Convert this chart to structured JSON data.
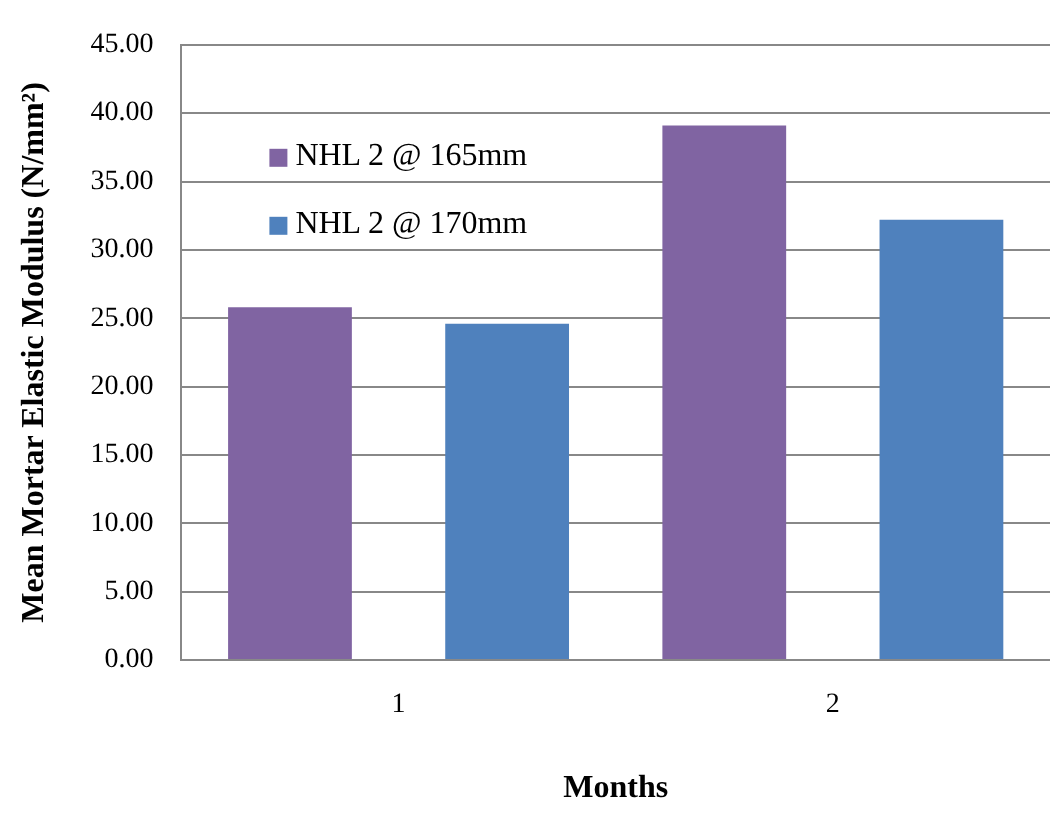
{
  "chart_data": {
    "type": "bar",
    "xlabel": "Months",
    "ylabel": "Mean Mortar Elastic Modulus (N/mm²)",
    "categories": [
      "1",
      "2"
    ],
    "series": [
      {
        "name": "NHL 2 @ 165mm",
        "color": "#8064a2",
        "values": [
          25.8,
          39.1
        ]
      },
      {
        "name": "NHL 2 @ 170mm",
        "color": "#4f81bd",
        "values": [
          24.6,
          32.2
        ]
      }
    ],
    "ylim": [
      0,
      45
    ],
    "yticks": [
      {
        "value": 0,
        "label": "0.00"
      },
      {
        "value": 5,
        "label": "5.00"
      },
      {
        "value": 10,
        "label": "10.00"
      },
      {
        "value": 15,
        "label": "15.00"
      },
      {
        "value": 20,
        "label": "20.00"
      },
      {
        "value": 25,
        "label": "25.00"
      },
      {
        "value": 30,
        "label": "30.00"
      },
      {
        "value": 35,
        "label": "35.00"
      },
      {
        "value": 40,
        "label": "40.00"
      },
      {
        "value": 45,
        "label": "45.00"
      }
    ],
    "grid": "y",
    "legend": "top left"
  }
}
